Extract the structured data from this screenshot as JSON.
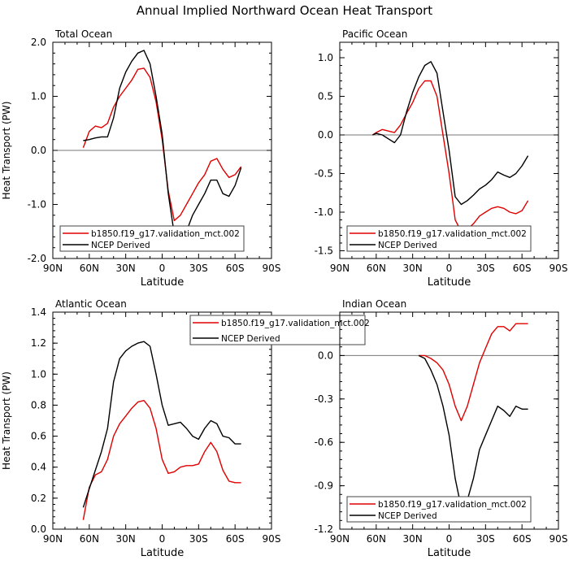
{
  "page_title": "Annual Implied Northward Ocean Heat Transport",
  "colors": {
    "model": "#e00000",
    "ncep": "#000000",
    "zero_line": "#777777"
  },
  "chart_data": [
    {
      "id": "total",
      "type": "line",
      "title": "Total Ocean",
      "xlabel": "Latitude",
      "ylabel": "Heat Transport (PW)",
      "xlim": [
        -90,
        90
      ],
      "ylim": [
        -2.0,
        2.0
      ],
      "xticks": [
        -90,
        -60,
        -30,
        0,
        30,
        60,
        90
      ],
      "xticklabels": [
        "90N",
        "60N",
        "30N",
        "0",
        "30S",
        "60S",
        "90S"
      ],
      "yticks": [
        -2.0,
        -1.0,
        0.0,
        1.0,
        2.0
      ],
      "yticklabels": [
        "-2.0",
        "-1.0",
        "0.0",
        "1.0",
        "2.0"
      ],
      "zero_line": true,
      "legend_position": "bottom-left",
      "series": [
        {
          "name": "b1850.f19_g17.validation_mct.002",
          "color": "#e00000",
          "x": [
            -65,
            -60,
            -55,
            -50,
            -45,
            -40,
            -35,
            -30,
            -25,
            -20,
            -15,
            -10,
            -5,
            0,
            5,
            10,
            15,
            20,
            25,
            30,
            35,
            40,
            45,
            50,
            55,
            60,
            65
          ],
          "y": [
            0.05,
            0.35,
            0.45,
            0.42,
            0.5,
            0.8,
            1.0,
            1.15,
            1.3,
            1.5,
            1.52,
            1.35,
            0.9,
            0.2,
            -0.75,
            -1.3,
            -1.2,
            -1.0,
            -0.8,
            -0.6,
            -0.45,
            -0.2,
            -0.15,
            -0.35,
            -0.5,
            -0.45,
            -0.3
          ]
        },
        {
          "name": "NCEP Derived",
          "color": "#000000",
          "x": [
            -65,
            -60,
            -55,
            -50,
            -45,
            -40,
            -35,
            -30,
            -25,
            -20,
            -15,
            -10,
            -5,
            0,
            5,
            10,
            15,
            20,
            25,
            30,
            35,
            40,
            45,
            50,
            55,
            60,
            65
          ],
          "y": [
            0.18,
            0.2,
            0.23,
            0.25,
            0.25,
            0.6,
            1.15,
            1.45,
            1.65,
            1.8,
            1.85,
            1.6,
            1.0,
            0.3,
            -0.8,
            -1.55,
            -1.65,
            -1.5,
            -1.2,
            -1.0,
            -0.8,
            -0.55,
            -0.55,
            -0.8,
            -0.85,
            -0.65,
            -0.32
          ]
        }
      ]
    },
    {
      "id": "pacific",
      "type": "line",
      "title": "Pacific Ocean",
      "xlabel": "Latitude",
      "ylabel": "",
      "xlim": [
        -90,
        90
      ],
      "ylim": [
        -1.6,
        1.2
      ],
      "xticks": [
        -90,
        -60,
        -30,
        0,
        30,
        60,
        90
      ],
      "xticklabels": [
        "90N",
        "60N",
        "30N",
        "0",
        "30S",
        "60S",
        "90S"
      ],
      "yticks": [
        -1.5,
        -1.0,
        -0.5,
        0.0,
        0.5,
        1.0
      ],
      "yticklabels": [
        "-1.5",
        "-1.0",
        "-0.5",
        "0.0",
        "0.5",
        "1.0"
      ],
      "zero_line": true,
      "legend_position": "bottom-left",
      "series": [
        {
          "name": "b1850.f19_g17.validation_mct.002",
          "color": "#e00000",
          "x": [
            -63,
            -60,
            -55,
            -50,
            -45,
            -40,
            -35,
            -30,
            -25,
            -20,
            -15,
            -10,
            -5,
            0,
            5,
            10,
            15,
            20,
            25,
            30,
            35,
            40,
            45,
            50,
            55,
            60,
            65
          ],
          "y": [
            0.0,
            0.03,
            0.07,
            0.05,
            0.03,
            0.13,
            0.28,
            0.42,
            0.6,
            0.7,
            0.7,
            0.5,
            0.0,
            -0.5,
            -1.1,
            -1.25,
            -1.22,
            -1.15,
            -1.05,
            -1.0,
            -0.95,
            -0.93,
            -0.95,
            -1.0,
            -1.02,
            -0.98,
            -0.85
          ]
        },
        {
          "name": "NCEP Derived",
          "color": "#000000",
          "x": [
            -63,
            -60,
            -55,
            -50,
            -45,
            -40,
            -35,
            -30,
            -25,
            -20,
            -15,
            -10,
            -5,
            0,
            5,
            10,
            15,
            20,
            25,
            30,
            35,
            40,
            45,
            50,
            55,
            60,
            65
          ],
          "y": [
            0.0,
            0.02,
            0.0,
            -0.05,
            -0.1,
            0.0,
            0.3,
            0.55,
            0.75,
            0.9,
            0.95,
            0.8,
            0.3,
            -0.2,
            -0.8,
            -0.9,
            -0.85,
            -0.78,
            -0.7,
            -0.65,
            -0.58,
            -0.48,
            -0.52,
            -0.55,
            -0.5,
            -0.4,
            -0.27
          ]
        }
      ]
    },
    {
      "id": "atlantic",
      "type": "line",
      "title": "Atlantic Ocean",
      "xlabel": "Latitude",
      "ylabel": "Heat Transport (PW)",
      "xlim": [
        -90,
        90
      ],
      "ylim": [
        0.0,
        1.4
      ],
      "xticks": [
        -90,
        -60,
        -30,
        0,
        30,
        60,
        90
      ],
      "xticklabels": [
        "90N",
        "60N",
        "30N",
        "0",
        "30S",
        "60S",
        "90S"
      ],
      "yticks": [
        0.0,
        0.2,
        0.4,
        0.6,
        0.8,
        1.0,
        1.2,
        1.4
      ],
      "yticklabels": [
        "0.0",
        "0.2",
        "0.4",
        "0.6",
        "0.8",
        "1.0",
        "1.2",
        "1.4"
      ],
      "zero_line": false,
      "legend_position": "top-center",
      "series": [
        {
          "name": "b1850.f19_g17.validation_mct.002",
          "color": "#e00000",
          "x": [
            -65,
            -60,
            -55,
            -50,
            -45,
            -40,
            -35,
            -30,
            -25,
            -20,
            -15,
            -10,
            -5,
            0,
            5,
            10,
            15,
            20,
            25,
            30,
            35,
            40,
            45,
            50,
            55,
            60,
            65
          ],
          "y": [
            0.06,
            0.27,
            0.35,
            0.37,
            0.45,
            0.6,
            0.68,
            0.73,
            0.78,
            0.82,
            0.83,
            0.78,
            0.65,
            0.45,
            0.36,
            0.37,
            0.4,
            0.41,
            0.41,
            0.42,
            0.5,
            0.56,
            0.5,
            0.38,
            0.31,
            0.3,
            0.3
          ]
        },
        {
          "name": "NCEP Derived",
          "color": "#000000",
          "x": [
            -65,
            -60,
            -55,
            -50,
            -45,
            -40,
            -35,
            -30,
            -25,
            -20,
            -15,
            -10,
            -5,
            0,
            5,
            10,
            15,
            20,
            25,
            30,
            35,
            40,
            45,
            50,
            55,
            60,
            65
          ],
          "y": [
            0.14,
            0.26,
            0.38,
            0.5,
            0.65,
            0.95,
            1.1,
            1.15,
            1.18,
            1.2,
            1.21,
            1.18,
            1.0,
            0.8,
            0.67,
            0.68,
            0.69,
            0.65,
            0.6,
            0.58,
            0.65,
            0.7,
            0.68,
            0.6,
            0.59,
            0.55,
            0.55
          ]
        }
      ]
    },
    {
      "id": "indian",
      "type": "line",
      "title": "Indian Ocean",
      "xlabel": "Latitude",
      "ylabel": "",
      "xlim": [
        -90,
        90
      ],
      "ylim": [
        -1.2,
        0.3
      ],
      "xticks": [
        -90,
        -60,
        -30,
        0,
        30,
        60,
        90
      ],
      "xticklabels": [
        "90N",
        "60N",
        "30N",
        "0",
        "30S",
        "60S",
        "90S"
      ],
      "yticks": [
        -1.2,
        -0.9,
        -0.6,
        -0.3,
        0.0
      ],
      "yticklabels": [
        "-1.2",
        "-0.9",
        "-0.6",
        "-0.3",
        "0.0"
      ],
      "zero_line": true,
      "legend_position": "bottom-left",
      "series": [
        {
          "name": "b1850.f19_g17.validation_mct.002",
          "color": "#e00000",
          "x": [
            -25,
            -20,
            -15,
            -10,
            -5,
            0,
            5,
            10,
            15,
            20,
            25,
            30,
            35,
            40,
            45,
            50,
            55,
            60,
            65
          ],
          "y": [
            0.0,
            0.0,
            -0.02,
            -0.05,
            -0.1,
            -0.2,
            -0.35,
            -0.45,
            -0.35,
            -0.2,
            -0.05,
            0.05,
            0.15,
            0.2,
            0.2,
            0.17,
            0.22,
            0.22,
            0.22
          ]
        },
        {
          "name": "NCEP Derived",
          "color": "#000000",
          "x": [
            -25,
            -20,
            -15,
            -10,
            -5,
            0,
            5,
            10,
            15,
            20,
            25,
            30,
            35,
            40,
            45,
            50,
            55,
            60,
            65
          ],
          "y": [
            0.0,
            -0.02,
            -0.1,
            -0.2,
            -0.35,
            -0.55,
            -0.85,
            -1.05,
            -1.0,
            -0.85,
            -0.65,
            -0.55,
            -0.45,
            -0.35,
            -0.38,
            -0.42,
            -0.35,
            -0.37,
            -0.37
          ]
        }
      ]
    }
  ]
}
